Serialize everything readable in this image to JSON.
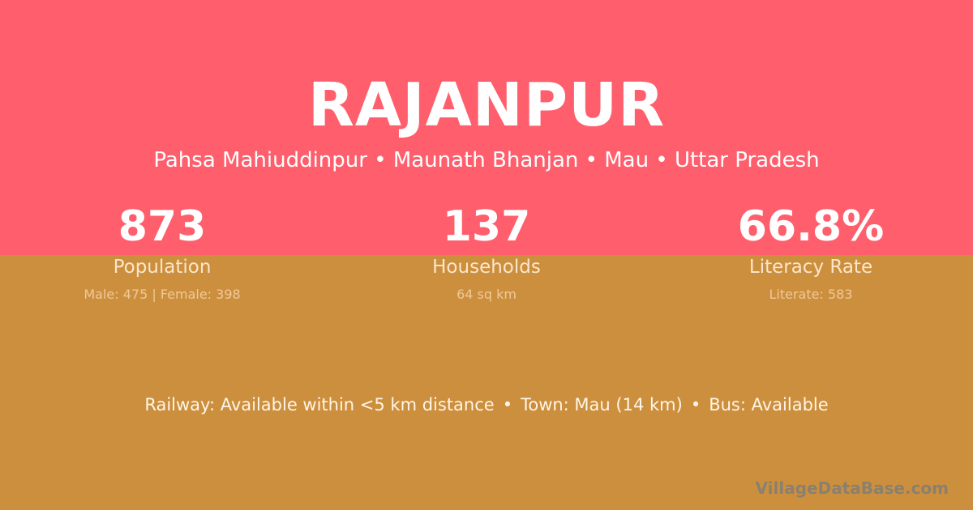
{
  "village": {
    "name": "RAJANPUR",
    "location": "Pahsa Mahiuddinpur • Maunath Bhanjan • Mau • Uttar Pradesh"
  },
  "stats": [
    {
      "value": "873",
      "label": "Population",
      "detail": "Male: 475 | Female: 398"
    },
    {
      "value": "137",
      "label": "Households",
      "detail": "64 sq km"
    },
    {
      "value": "66.8%",
      "label": "Literacy Rate",
      "detail": "Literate: 583"
    }
  ],
  "facts": {
    "railway": "Railway: Available within <5 km distance",
    "town": "Town: Mau (14 km)",
    "bus": "Bus: Available",
    "separator": "•"
  },
  "brand": "VillageDataBase.com",
  "colors": {
    "top": "#ff5f6d",
    "bottom": "#cc8f3d"
  }
}
